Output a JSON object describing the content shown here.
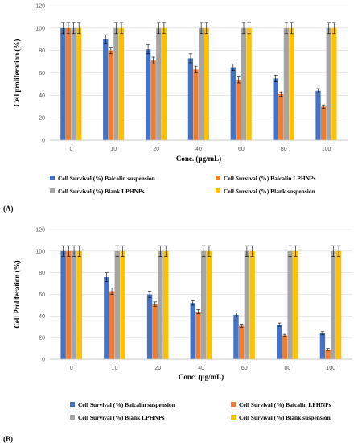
{
  "chart_data": [
    {
      "type": "bar",
      "panel_label": "(A)",
      "ylabel": "Cell proliferation (%)",
      "xlabel": "Conc.  (µg/mL)",
      "categories": [
        "0",
        "10",
        "20",
        "40",
        "60",
        "80",
        "100"
      ],
      "ylim": [
        0,
        120
      ],
      "yticks": [
        0,
        20,
        40,
        60,
        80,
        100,
        120
      ],
      "legend_position": "bottom",
      "series": [
        {
          "name": "Cell Survival (%) Baicalin suspension",
          "color": "#4472C4",
          "values": [
            100,
            90,
            81,
            73,
            65,
            55,
            44
          ],
          "errors": [
            5,
            4,
            4,
            4,
            3,
            3,
            2
          ]
        },
        {
          "name": "Cell Survival (%) Baicalin LPHNPs",
          "color": "#ED7D31",
          "values": [
            100,
            80,
            71,
            63,
            54,
            41,
            30
          ],
          "errors": [
            5,
            3,
            3,
            3,
            3,
            2,
            1.5
          ]
        },
        {
          "name": "Cell Survival (%) Blank LPHNPs",
          "color": "#A5A5A5",
          "values": [
            100,
            100,
            100,
            100,
            100,
            100,
            100
          ],
          "errors": [
            5,
            5,
            5,
            5,
            5,
            5,
            5
          ]
        },
        {
          "name": "Cell Survival (%) Blank suspension",
          "color": "#FFC000",
          "values": [
            100,
            100,
            100,
            100,
            100,
            100,
            100
          ],
          "errors": [
            5,
            5,
            5,
            5,
            5,
            5,
            5
          ]
        }
      ]
    },
    {
      "type": "bar",
      "panel_label": "(B)",
      "ylabel": "Cell Proliferation  (%)",
      "xlabel": "Conc.  (µg/mL)",
      "categories": [
        "0",
        "10",
        "20",
        "40",
        "60",
        "80",
        "100"
      ],
      "ylim": [
        0,
        120
      ],
      "yticks": [
        0,
        20,
        40,
        60,
        80,
        100,
        120
      ],
      "legend_position": "bottom",
      "series": [
        {
          "name": "Cell Survival (%) Baicalin suspension",
          "color": "#4472C4",
          "values": [
            100,
            76,
            60,
            52,
            41,
            32,
            24
          ],
          "errors": [
            5,
            4,
            3,
            2,
            2,
            1.5,
            1.5
          ]
        },
        {
          "name": "Cell Survival (%) Baicalin LPHNPs",
          "color": "#ED7D31",
          "values": [
            100,
            63,
            51,
            44,
            31,
            22,
            9
          ],
          "errors": [
            5,
            3,
            2,
            2,
            1.5,
            1,
            1
          ]
        },
        {
          "name": "Cell Survival (%) Blank LPHNPs",
          "color": "#A5A5A5",
          "values": [
            100,
            100,
            100,
            100,
            100,
            100,
            100
          ],
          "errors": [
            5,
            5,
            5,
            5,
            5,
            5,
            5
          ]
        },
        {
          "name": "Cell Survival (%) Blank suspension",
          "color": "#FFC000",
          "values": [
            100,
            100,
            100,
            100,
            100,
            100,
            100
          ],
          "errors": [
            5,
            5,
            5,
            5,
            5,
            5,
            5
          ]
        }
      ]
    }
  ]
}
